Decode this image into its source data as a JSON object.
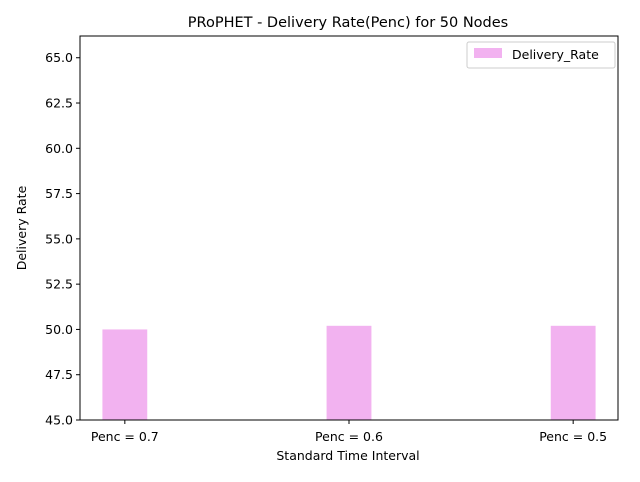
{
  "chart_data": {
    "type": "bar",
    "title": "PRoPHET - Delivery Rate(Penc) for 50 Nodes",
    "xlabel": "Standard Time Interval",
    "ylabel": "Delivery Rate",
    "categories": [
      "Penc = 0.7",
      "Penc = 0.6",
      "Penc = 0.5"
    ],
    "series": [
      {
        "name": "Delivery_Rate",
        "values": [
          50.0,
          50.2,
          50.2
        ],
        "color": "#f2b2f0"
      }
    ],
    "ylim": [
      45.0,
      66.2
    ],
    "yticks": [
      "45.0",
      "47.5",
      "50.0",
      "52.5",
      "55.0",
      "57.5",
      "60.0",
      "62.5",
      "65.0"
    ],
    "grid": false,
    "legend_position": "top-right"
  }
}
